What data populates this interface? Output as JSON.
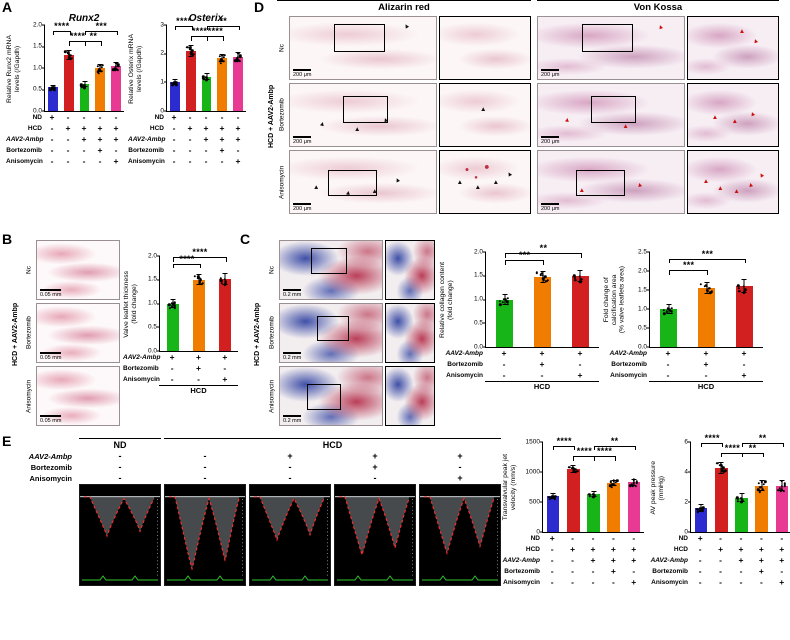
{
  "icons": {
    "arrowhead": "▲",
    "spot": "●"
  },
  "panels": {
    "A": {
      "label": "A",
      "charts": [
        {
          "type": "bar",
          "title": "Runx2",
          "ylabel": "Relative Runx2 mRNA\nlevels (/Gapdh)",
          "ylim": [
            0,
            2
          ],
          "yticks": [
            "0.0",
            "0.5",
            "1.0",
            "1.5",
            "2.0"
          ],
          "values": [
            0.55,
            1.3,
            0.62,
            1.0,
            1.05
          ],
          "errors": [
            0.06,
            0.12,
            0.07,
            0.1,
            0.09
          ],
          "colors": [
            "#2b2bd0",
            "#d21f1f",
            "#17b517",
            "#f07d00",
            "#e83a92"
          ],
          "sig": [
            {
              "from": 0,
              "to": 1,
              "label": "****",
              "row": 1
            },
            {
              "from": 2,
              "to": 4,
              "label": "***",
              "row": 1
            },
            {
              "from": 1,
              "to": 2,
              "label": "****",
              "row": 0
            },
            {
              "from": 2,
              "to": 3,
              "label": "**",
              "row": 0
            }
          ],
          "dose": {
            "rows": [
              {
                "label": "ND",
                "values": [
                  "+",
                  "-",
                  "-",
                  "-",
                  "-"
                ]
              },
              {
                "label": "HCD",
                "values": [
                  "-",
                  "+",
                  "+",
                  "+",
                  "+"
                ]
              },
              {
                "label": "AAV2-Ambp",
                "values": [
                  "-",
                  "-",
                  "+",
                  "+",
                  "+"
                ]
              },
              {
                "label": "Bortezomib",
                "values": [
                  "-",
                  "-",
                  "-",
                  "+",
                  "-"
                ]
              },
              {
                "label": "Anisomycin",
                "values": [
                  "-",
                  "-",
                  "-",
                  "-",
                  "+"
                ]
              }
            ]
          }
        },
        {
          "type": "bar",
          "title": "Osterix",
          "ylabel": "Relative Osterix mRNA\nlevels (/Gapdh)",
          "ylim": [
            0,
            3
          ],
          "yticks": [
            "0",
            "1",
            "2",
            "3"
          ],
          "values": [
            1.0,
            2.1,
            1.2,
            1.85,
            1.9
          ],
          "errors": [
            0.1,
            0.2,
            0.12,
            0.15,
            0.15
          ],
          "colors": [
            "#2b2bd0",
            "#d21f1f",
            "#17b517",
            "#f07d00",
            "#e83a92"
          ],
          "sig": [
            {
              "from": 0,
              "to": 1,
              "label": "****",
              "row": 1
            },
            {
              "from": 2,
              "to": 4,
              "label": "**",
              "row": 1
            },
            {
              "from": 1,
              "to": 2,
              "label": "****",
              "row": 0
            },
            {
              "from": 2,
              "to": 3,
              "label": "****",
              "row": 0
            }
          ],
          "dose": {
            "rows": [
              {
                "label": "ND",
                "values": [
                  "+",
                  "-",
                  "-",
                  "-",
                  "-"
                ]
              },
              {
                "label": "HCD",
                "values": [
                  "-",
                  "+",
                  "+",
                  "+",
                  "+"
                ]
              },
              {
                "label": "AAV2-Ambp",
                "values": [
                  "-",
                  "-",
                  "+",
                  "+",
                  "+"
                ]
              },
              {
                "label": "Bortezomib",
                "values": [
                  "-",
                  "-",
                  "-",
                  "+",
                  "-"
                ]
              },
              {
                "label": "Anisomycin",
                "values": [
                  "-",
                  "-",
                  "-",
                  "-",
                  "+"
                ]
              }
            ]
          }
        }
      ]
    },
    "B": {
      "label": "B",
      "side_label": "HCD + AAV2-Ambp",
      "histo": {
        "stain": "he",
        "rows": [
          "Nc",
          "Bortezomib",
          "Anisomycin"
        ],
        "row_labels": true,
        "zoom": false,
        "scale": "0.05 mm"
      },
      "chart": {
        "type": "bar",
        "ylabel": "Valve leaflet thickness\n(fold change)",
        "ylim": [
          0,
          2
        ],
        "yticks": [
          "0.0",
          "0.5",
          "1.0",
          "1.5",
          "2.0"
        ],
        "values": [
          1.0,
          1.5,
          1.52
        ],
        "errors": [
          0.1,
          0.12,
          0.12
        ],
        "colors": [
          "#17b517",
          "#f07d00",
          "#d21f1f"
        ],
        "sig": [
          {
            "from": 0,
            "to": 1,
            "label": "****",
            "row": 0
          },
          {
            "from": 0,
            "to": 2,
            "label": "****",
            "row": 1
          }
        ],
        "dose": {
          "rows": [
            {
              "label": "AAV2-Ambp",
              "values": [
                "+",
                "+",
                "+"
              ]
            },
            {
              "label": "Bortezomib",
              "values": [
                "-",
                "+",
                "-"
              ]
            },
            {
              "label": "Anisomycin",
              "values": [
                "-",
                "-",
                "+"
              ]
            }
          ],
          "group_label": "HCD"
        }
      }
    },
    "C": {
      "label": "C",
      "side_label": "HCD + AAV2-Ambp",
      "histo": {
        "stain": "masson",
        "rows": [
          "Nc",
          "Bortezomib",
          "Anisomycin"
        ],
        "row_labels": true,
        "zoom": true,
        "scale": "0.2 mm"
      },
      "charts": [
        {
          "type": "bar",
          "ylabel": "Relative collagen content\n(fold change)",
          "ylim": [
            0,
            2
          ],
          "yticks": [
            "0.0",
            "0.5",
            "1.0",
            "1.5",
            "2.0"
          ],
          "values": [
            1.0,
            1.48,
            1.5
          ],
          "errors": [
            0.12,
            0.13,
            0.13
          ],
          "colors": [
            "#17b517",
            "#f07d00",
            "#d21f1f"
          ],
          "sig": [
            {
              "from": 0,
              "to": 1,
              "label": "***",
              "row": 0
            },
            {
              "from": 0,
              "to": 2,
              "label": "**",
              "row": 1
            }
          ],
          "dose": {
            "rows": [
              {
                "label": "AAV2-Ambp",
                "values": [
                  "+",
                  "+",
                  "+"
                ]
              },
              {
                "label": "Bortezomib",
                "values": [
                  "-",
                  "+",
                  "-"
                ]
              },
              {
                "label": "Anisomycin",
                "values": [
                  "-",
                  "-",
                  "+"
                ]
              }
            ],
            "group_label": "HCD"
          }
        },
        {
          "type": "bar",
          "ylabel": "Fold change of\ncalcification area\n(% valve leaflets area)",
          "ylim": [
            0,
            2.5
          ],
          "yticks": [
            "0.0",
            "0.5",
            "1.0",
            "1.5",
            "2.0",
            "2.5"
          ],
          "values": [
            1.0,
            1.55,
            1.6
          ],
          "errors": [
            0.13,
            0.16,
            0.18
          ],
          "colors": [
            "#17b517",
            "#f07d00",
            "#d21f1f"
          ],
          "sig": [
            {
              "from": 0,
              "to": 1,
              "label": "***",
              "row": 0
            },
            {
              "from": 0,
              "to": 2,
              "label": "***",
              "row": 1
            }
          ],
          "dose": {
            "rows": [
              {
                "label": "AAV2-Ambp",
                "values": [
                  "+",
                  "+",
                  "+"
                ]
              },
              {
                "label": "Bortezomib",
                "values": [
                  "-",
                  "+",
                  "-"
                ]
              },
              {
                "label": "Anisomycin",
                "values": [
                  "-",
                  "-",
                  "+"
                ]
              }
            ],
            "group_label": "HCD"
          }
        }
      ]
    },
    "D": {
      "label": "D",
      "side_label": "HCD + AAV2-Ambp",
      "columns": [
        "Alizarin red",
        "Von Kossa"
      ],
      "histo": [
        {
          "stain": "alizarin",
          "rows": [
            "Nc",
            "Bortezomib",
            "Anisomycin"
          ],
          "row_labels": true,
          "zoom": true,
          "scale": "200 μm"
        },
        {
          "stain": "vonkossa",
          "rows": [
            "Nc",
            "Bortezomib",
            "Anisomycin"
          ],
          "row_labels": false,
          "zoom": true,
          "scale": "200 μm"
        }
      ]
    },
    "E": {
      "label": "E",
      "group_headers": [
        {
          "label": "ND",
          "span": 1
        },
        {
          "label": "HCD",
          "span": 4
        }
      ],
      "dose_rows": [
        {
          "label": "AAV2-Ambp",
          "values": [
            "-",
            "-",
            "+",
            "+",
            "+"
          ]
        },
        {
          "label": "Bortezomib",
          "values": [
            "-",
            "-",
            "-",
            "+",
            "-"
          ]
        },
        {
          "label": "Anisomycin",
          "values": [
            "-",
            "-",
            "-",
            "-",
            "+"
          ]
        }
      ],
      "echo": {
        "count": 5,
        "depths": [
          0.5,
          0.92,
          0.55,
          0.74,
          0.72
        ]
      },
      "charts": [
        {
          "type": "bar",
          "ylabel": "Transvalvular peak jet\nvelocity (mm/s)",
          "ylim": [
            0,
            1500
          ],
          "yticks": [
            "0",
            "500",
            "1000",
            "1500"
          ],
          "values": [
            600,
            1050,
            640,
            820,
            830
          ],
          "errors": [
            45,
            60,
            50,
            55,
            55
          ],
          "colors": [
            "#2b2bd0",
            "#d21f1f",
            "#17b517",
            "#f07d00",
            "#e83a92"
          ],
          "sig": [
            {
              "from": 0,
              "to": 1,
              "label": "****",
              "row": 1
            },
            {
              "from": 2,
              "to": 4,
              "label": "**",
              "row": 1
            },
            {
              "from": 1,
              "to": 2,
              "label": "****",
              "row": 0
            },
            {
              "from": 2,
              "to": 3,
              "label": "****",
              "row": 0
            }
          ],
          "dose": {
            "rows": [
              {
                "label": "ND",
                "values": [
                  "+",
                  "-",
                  "-",
                  "-",
                  "-"
                ]
              },
              {
                "label": "HCD",
                "values": [
                  "-",
                  "+",
                  "+",
                  "+",
                  "+"
                ]
              },
              {
                "label": "AAV2-Ambp",
                "values": [
                  "-",
                  "-",
                  "+",
                  "+",
                  "+"
                ]
              },
              {
                "label": "Bortezomib",
                "values": [
                  "-",
                  "-",
                  "-",
                  "+",
                  "-"
                ]
              },
              {
                "label": "Anisomycin",
                "values": [
                  "-",
                  "-",
                  "-",
                  "-",
                  "+"
                ]
              }
            ]
          }
        },
        {
          "type": "bar",
          "ylabel": "AV peak pressure\n(mmHg)",
          "ylim": [
            0,
            6
          ],
          "yticks": [
            "0",
            "2",
            "4",
            "6"
          ],
          "values": [
            1.6,
            4.3,
            2.3,
            3.1,
            3.1
          ],
          "errors": [
            0.25,
            0.4,
            0.3,
            0.35,
            0.35
          ],
          "colors": [
            "#2b2bd0",
            "#d21f1f",
            "#17b517",
            "#f07d00",
            "#e83a92"
          ],
          "sig": [
            {
              "from": 0,
              "to": 1,
              "label": "****",
              "row": 1
            },
            {
              "from": 2,
              "to": 4,
              "label": "**",
              "row": 1
            },
            {
              "from": 1,
              "to": 2,
              "label": "****",
              "row": 0
            },
            {
              "from": 2,
              "to": 3,
              "label": "**",
              "row": 0
            }
          ],
          "dose": {
            "rows": [
              {
                "label": "ND",
                "values": [
                  "+",
                  "-",
                  "-",
                  "-",
                  "-"
                ]
              },
              {
                "label": "HCD",
                "values": [
                  "-",
                  "+",
                  "+",
                  "+",
                  "+"
                ]
              },
              {
                "label": "AAV2-Ambp",
                "values": [
                  "-",
                  "-",
                  "+",
                  "+",
                  "+"
                ]
              },
              {
                "label": "Bortezomib",
                "values": [
                  "-",
                  "-",
                  "-",
                  "+",
                  "-"
                ]
              },
              {
                "label": "Anisomycin",
                "values": [
                  "-",
                  "-",
                  "-",
                  "-",
                  "+"
                ]
              }
            ]
          }
        }
      ]
    }
  }
}
